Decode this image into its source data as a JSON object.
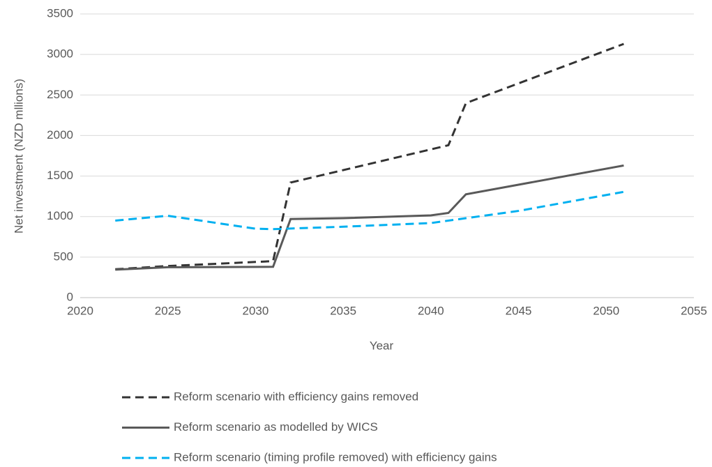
{
  "chart_data": {
    "type": "line",
    "xlabel": "Year",
    "ylabel": "Net investment (NZD mllions)",
    "xlim": [
      2020,
      2055
    ],
    "xticks": [
      2020,
      2025,
      2030,
      2035,
      2040,
      2045,
      2050,
      2055
    ],
    "ylim": [
      0,
      3500
    ],
    "yticks": [
      0,
      500,
      1000,
      1500,
      2000,
      2500,
      3000,
      3500
    ],
    "grid": true,
    "legend": "bottom",
    "series": [
      {
        "name": "Reform scenario with efficiency gains removed",
        "color": "#333333",
        "style": "dashed",
        "x": [
          2022,
          2025,
          2031,
          2032,
          2041,
          2042,
          2051
        ],
        "values": [
          350,
          390,
          450,
          1420,
          1880,
          2400,
          3130
        ]
      },
      {
        "name": "Reform scenario as modelled by WICS",
        "color": "#595959",
        "style": "solid",
        "x": [
          2022,
          2025,
          2031,
          2032,
          2035,
          2040,
          2041,
          2042,
          2051
        ],
        "values": [
          345,
          375,
          380,
          970,
          980,
          1015,
          1045,
          1275,
          1630
        ]
      },
      {
        "name": "Reform scenario (timing profile removed) with efficiency gains",
        "color": "#00b0f0",
        "style": "dashed",
        "x": [
          2022,
          2025,
          2030,
          2031,
          2035,
          2040,
          2042,
          2045,
          2051
        ],
        "values": [
          950,
          1010,
          850,
          845,
          875,
          920,
          980,
          1070,
          1305
        ]
      }
    ]
  }
}
